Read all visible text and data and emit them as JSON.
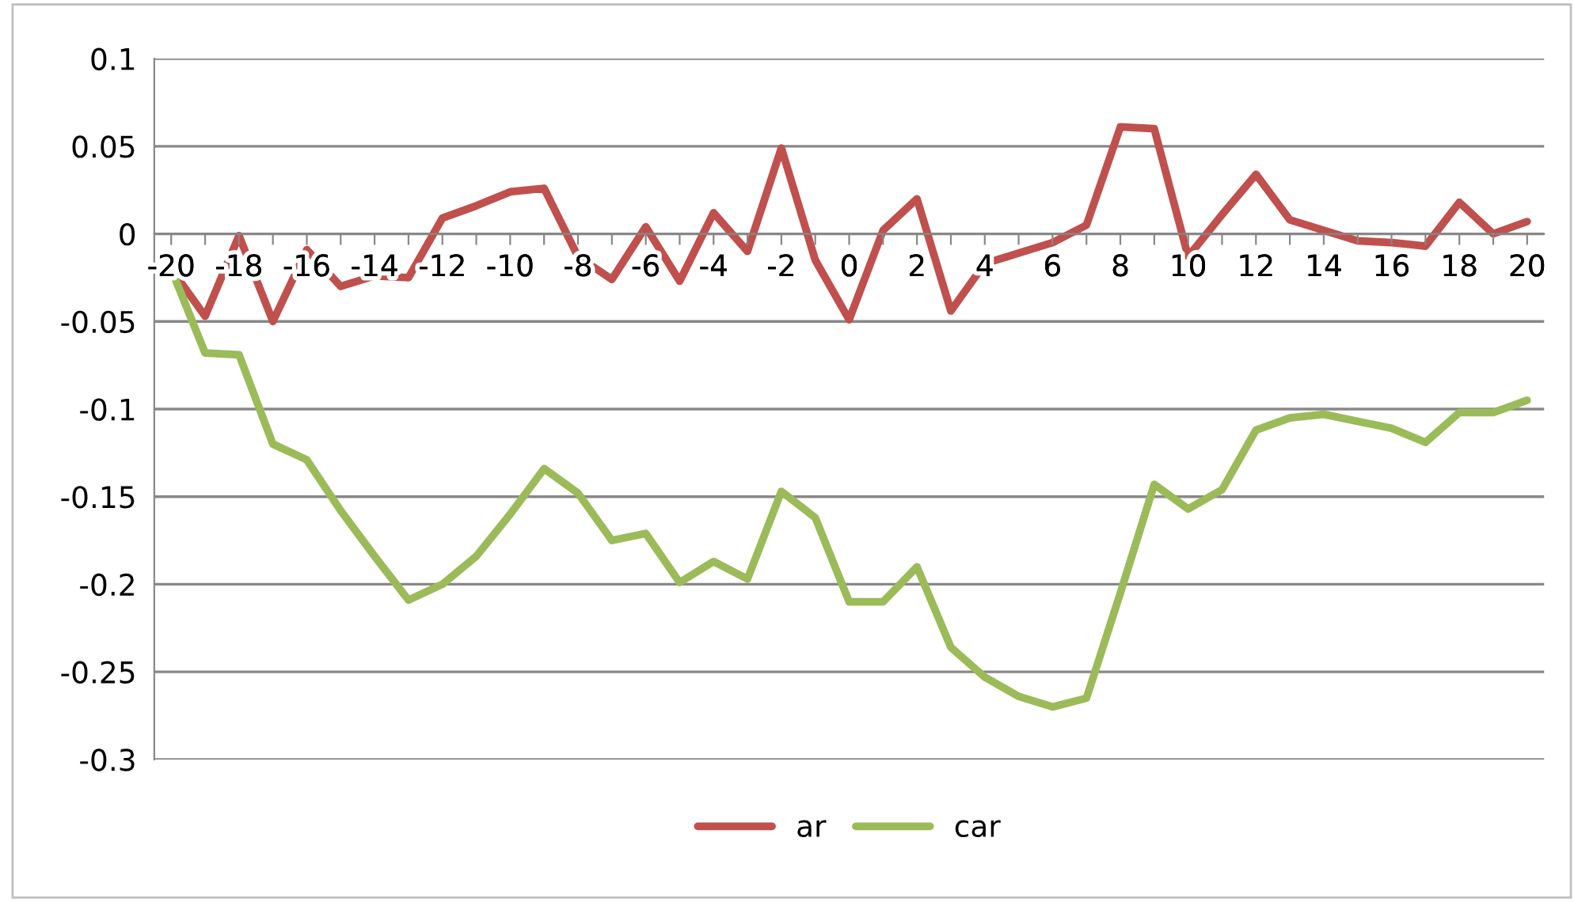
{
  "chart_data": {
    "type": "line",
    "categories": [
      "-20",
      null,
      "-18",
      null,
      "-16",
      null,
      "-14",
      null,
      "-12",
      null,
      "-10",
      null,
      "-8",
      null,
      "-6",
      null,
      "-4",
      null,
      "-2",
      null,
      "0",
      null,
      "2",
      null,
      "4",
      null,
      "6",
      null,
      "8",
      null,
      "10",
      null,
      "12",
      null,
      "14",
      null,
      "16",
      null,
      "18",
      null,
      "20"
    ],
    "series": [
      {
        "name": "ar",
        "color": "#c0504d",
        "values": [
          -0.02,
          -0.047,
          -0.001,
          -0.05,
          -0.009,
          -0.03,
          -0.024,
          -0.025,
          0.009,
          0.016,
          0.024,
          0.026,
          -0.013,
          -0.026,
          0.004,
          -0.027,
          0.012,
          -0.01,
          0.049,
          -0.015,
          -0.049,
          0.002,
          0.02,
          -0.044,
          -0.017,
          -0.011,
          -0.005,
          0.005,
          0.061,
          0.06,
          -0.013,
          0.011,
          0.034,
          0.008,
          0.002,
          -0.004,
          -0.005,
          -0.007,
          0.018,
          0.0,
          0.007
        ]
      },
      {
        "name": "car",
        "color": "#9bbb59",
        "values": [
          -0.02,
          -0.068,
          -0.069,
          -0.12,
          -0.129,
          -0.158,
          -0.184,
          -0.209,
          -0.2,
          -0.184,
          -0.16,
          -0.134,
          -0.148,
          -0.175,
          -0.171,
          -0.199,
          -0.187,
          -0.197,
          -0.147,
          -0.162,
          -0.21,
          -0.21,
          -0.19,
          -0.236,
          -0.253,
          -0.264,
          -0.27,
          -0.265,
          -0.205,
          -0.143,
          -0.157,
          -0.146,
          -0.112,
          -0.105,
          -0.103,
          -0.107,
          -0.111,
          -0.119,
          -0.102,
          -0.102,
          -0.095
        ]
      }
    ],
    "ylim": [
      -0.3,
      0.1
    ],
    "yticks": [
      {
        "value": -0.3,
        "label": "-0.3"
      },
      {
        "value": -0.25,
        "label": "-0.25"
      },
      {
        "value": -0.2,
        "label": "-0.2"
      },
      {
        "value": -0.15,
        "label": "-0.15"
      },
      {
        "value": -0.1,
        "label": "-0.1"
      },
      {
        "value": -0.05,
        "label": "-0.05"
      },
      0,
      0.05,
      0.1
    ],
    "grid": "y",
    "legend": "bottom",
    "marker": "none",
    "line_style": "solid"
  }
}
